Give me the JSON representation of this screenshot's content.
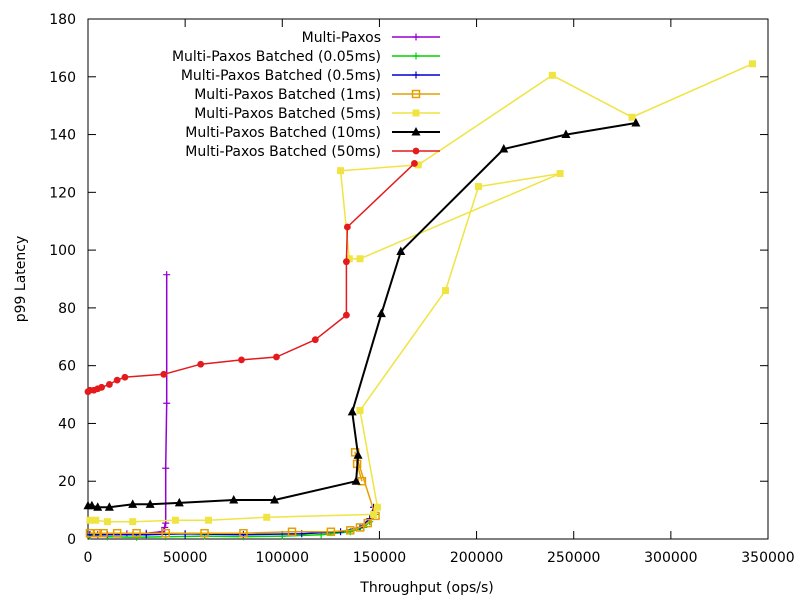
{
  "chart_data": {
    "type": "line",
    "title": "",
    "xlabel": "Throughput (ops/s)",
    "ylabel": "p99 Latency",
    "xlim": [
      0,
      350000
    ],
    "ylim": [
      0,
      180
    ],
    "x_ticks": [
      0,
      50000,
      100000,
      150000,
      200000,
      250000,
      300000,
      350000
    ],
    "x_tick_labels": [
      "0",
      "50000",
      "100000",
      "150000",
      "200000",
      "250000",
      "300000",
      "350000"
    ],
    "y_ticks": [
      0,
      20,
      40,
      60,
      80,
      100,
      120,
      140,
      160,
      180
    ],
    "y_tick_labels": [
      "0",
      "20",
      "40",
      "60",
      "80",
      "100",
      "120",
      "140",
      "160",
      "180"
    ],
    "grid": false,
    "legend_position": "top-center",
    "series": [
      {
        "name": "Multi-Paxos",
        "color": "#9400d3",
        "marker": "plus",
        "points": [
          [
            1000,
            1.5
          ],
          [
            5000,
            1.5
          ],
          [
            10000,
            1.5
          ],
          [
            20000,
            1.8
          ],
          [
            30000,
            2.0
          ],
          [
            38000,
            2.5
          ],
          [
            39500,
            4.0
          ],
          [
            40000,
            5.5
          ],
          [
            40000,
            24.5
          ],
          [
            40500,
            47.0
          ],
          [
            40500,
            91.5
          ]
        ]
      },
      {
        "name": "Multi-Paxos Batched (0.05ms)",
        "color": "#00d100",
        "marker": "plus",
        "points": [
          [
            1000,
            1.0
          ],
          [
            10000,
            0.8
          ],
          [
            25000,
            0.6
          ],
          [
            40000,
            0.8
          ],
          [
            60000,
            1.0
          ],
          [
            80000,
            0.8
          ],
          [
            100000,
            1.0
          ],
          [
            120000,
            1.5
          ],
          [
            135000,
            2.5
          ],
          [
            142000,
            4.0
          ],
          [
            145000,
            6.0
          ],
          [
            148000,
            8.5
          ]
        ]
      },
      {
        "name": "Multi-Paxos Batched (0.5ms)",
        "color": "#0000cd",
        "marker": "plus",
        "points": [
          [
            1000,
            1.5
          ],
          [
            10000,
            1.5
          ],
          [
            30000,
            1.5
          ],
          [
            50000,
            1.8
          ],
          [
            80000,
            1.5
          ],
          [
            110000,
            1.8
          ],
          [
            130000,
            2.5
          ],
          [
            140000,
            4.0
          ],
          [
            145000,
            7.0
          ],
          [
            147000,
            11.0
          ]
        ]
      },
      {
        "name": "Multi-Paxos Batched (1ms)",
        "color": "#e69f00",
        "marker": "square-open",
        "points": [
          [
            1000,
            2.0
          ],
          [
            5000,
            2.0
          ],
          [
            8000,
            2.0
          ],
          [
            15000,
            2.0
          ],
          [
            25000,
            2.0
          ],
          [
            40000,
            2.0
          ],
          [
            60000,
            2.0
          ],
          [
            80000,
            2.0
          ],
          [
            105000,
            2.5
          ],
          [
            125000,
            2.5
          ],
          [
            135000,
            3.0
          ],
          [
            140000,
            4.0
          ],
          [
            144000,
            5.5
          ],
          [
            148000,
            8.0
          ],
          [
            137500,
            30.0
          ],
          [
            138500,
            26.0
          ],
          [
            141000,
            20.0
          ]
        ]
      },
      {
        "name": "Multi-Paxos Batched (5ms)",
        "color": "#f0e442",
        "marker": "square",
        "points": [
          [
            1000,
            6.5
          ],
          [
            4000,
            6.5
          ],
          [
            10000,
            6.0
          ],
          [
            23000,
            6.0
          ],
          [
            45000,
            6.5
          ],
          [
            62000,
            6.5
          ],
          [
            92000,
            7.5
          ],
          [
            147000,
            8.5
          ],
          [
            149000,
            11.0
          ],
          [
            140000,
            44.5
          ],
          [
            184000,
            86.0
          ],
          [
            201000,
            122.0
          ],
          [
            243000,
            126.5
          ],
          [
            140000,
            97.0
          ],
          [
            134500,
            97.0
          ],
          [
            130000,
            127.5
          ],
          [
            170000,
            129.5
          ],
          [
            239000,
            160.5
          ],
          [
            280000,
            146.0
          ],
          [
            342000,
            164.5
          ]
        ]
      },
      {
        "name": "Multi-Paxos Batched (10ms)",
        "color": "#000000",
        "marker": "triangle",
        "points": [
          [
            0,
            11.5
          ],
          [
            2000,
            11.5
          ],
          [
            5000,
            11.0
          ],
          [
            11000,
            11.0
          ],
          [
            23000,
            12.0
          ],
          [
            32000,
            12.0
          ],
          [
            47000,
            12.5
          ],
          [
            75000,
            13.5
          ],
          [
            96000,
            13.5
          ],
          [
            138000,
            20.0
          ],
          [
            139000,
            29.0
          ],
          [
            136000,
            44.0
          ],
          [
            151000,
            78.0
          ],
          [
            161000,
            99.5
          ],
          [
            214000,
            135.0
          ],
          [
            246000,
            140.0
          ],
          [
            282000,
            144.0
          ]
        ]
      },
      {
        "name": "Multi-Paxos Batched (50ms)",
        "color": "#e41a1c",
        "marker": "circle",
        "points": [
          [
            0,
            51.0
          ],
          [
            1000,
            51.5
          ],
          [
            3000,
            51.5
          ],
          [
            5000,
            52.0
          ],
          [
            7000,
            52.5
          ],
          [
            11000,
            53.5
          ],
          [
            15000,
            55.0
          ],
          [
            19000,
            56.0
          ],
          [
            39000,
            57.0
          ],
          [
            58000,
            60.5
          ],
          [
            79000,
            62.0
          ],
          [
            97000,
            63.0
          ],
          [
            117000,
            69.0
          ],
          [
            133000,
            77.5
          ],
          [
            133000,
            96.0
          ],
          [
            133500,
            108.0
          ],
          [
            168000,
            130.0
          ]
        ]
      }
    ]
  }
}
